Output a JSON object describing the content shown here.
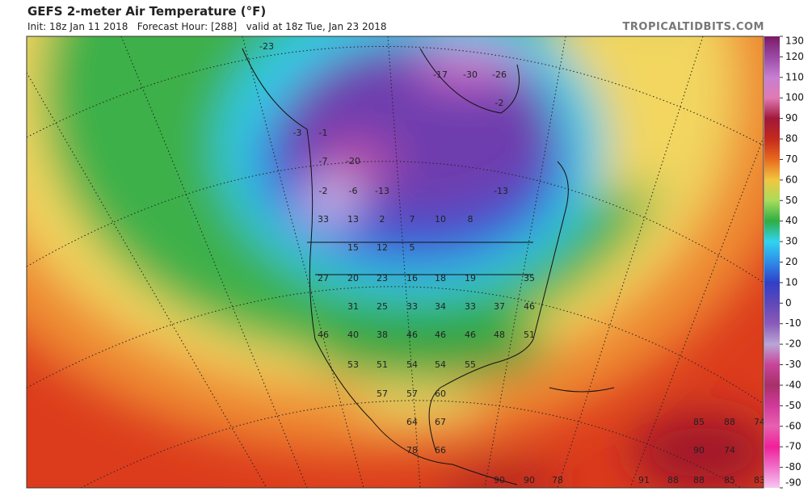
{
  "header": {
    "title": "GEFS 2-meter Air Temperature (°F)",
    "subtitle": "Init: 18z Jan 11 2018   Forecast Hour: [288]   valid at 18z Tue, Jan 23 2018",
    "source": "TROPICALTIDBITS.COM"
  },
  "colorbar": {
    "ticks": [
      130,
      120,
      110,
      100,
      90,
      80,
      70,
      60,
      50,
      40,
      30,
      20,
      10,
      0,
      -10,
      -20,
      -30,
      -40,
      -50,
      -60,
      -70,
      -80,
      -90
    ],
    "colors": [
      "#7a1a66",
      "#9a4aa6",
      "#c77fd0",
      "#e07ab4",
      "#a0183a",
      "#c42a1c",
      "#e86a1e",
      "#f2c640",
      "#a8dc5a",
      "#2fae44",
      "#30d4f0",
      "#2e8ce8",
      "#3040c8",
      "#6048b8",
      "#8a5ab8",
      "#b9a6d6",
      "#c8449a",
      "#a8306a",
      "#d03a9a",
      "#e860b0",
      "#f0209a",
      "#f070c8",
      "#f6c8f0"
    ]
  },
  "map": {
    "temperature_labels": [
      -23,
      -17,
      -30,
      -26,
      -2,
      -3,
      -1,
      -20,
      -7,
      -2,
      -6,
      -13,
      -13,
      33,
      13,
      2,
      7,
      10,
      8,
      15,
      12,
      5,
      27,
      20,
      23,
      16,
      18,
      19,
      35,
      31,
      25,
      33,
      34,
      33,
      37,
      46,
      46,
      40,
      38,
      46,
      46,
      46,
      48,
      51,
      53,
      51,
      54,
      54,
      55,
      57,
      57,
      60,
      64,
      67,
      78,
      66,
      85,
      88,
      74,
      90,
      74,
      91,
      88,
      88,
      85,
      83,
      90,
      90,
      78
    ]
  }
}
